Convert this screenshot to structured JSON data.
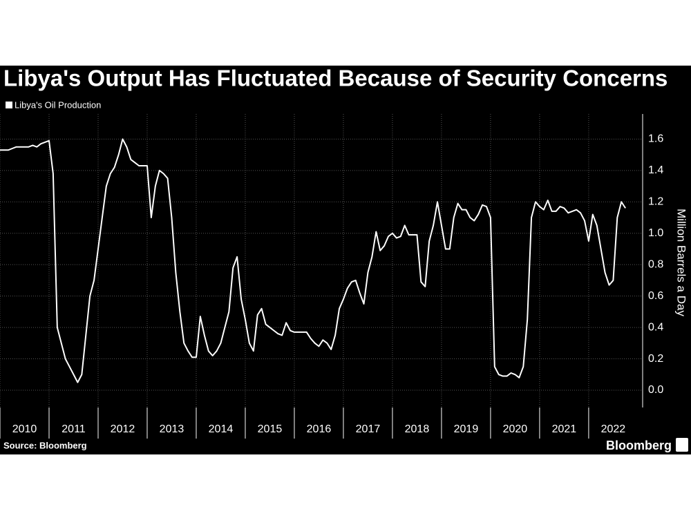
{
  "chart_data": {
    "type": "line",
    "title": "Libya's Output Has Fluctuated Because of Security Concerns",
    "y_axis_label": "Million Barrels a Day",
    "source": "Source: Bloomberg",
    "brand": "Bloomberg",
    "grid": true,
    "xlim": [
      2010,
      2023.1
    ],
    "xticks": [
      2010,
      2011,
      2012,
      2013,
      2014,
      2015,
      2016,
      2017,
      2018,
      2019,
      2020,
      2021,
      2022
    ],
    "ylim": [
      -0.11,
      1.76
    ],
    "yticks": [
      {
        "value": 0,
        "label": "0.0"
      },
      0.2,
      0.4,
      0.6,
      0.8,
      {
        "value": 1,
        "label": "1.0"
      },
      1.2,
      1.4,
      1.6
    ],
    "x": [
      2010.0,
      2010.083,
      2010.167,
      2010.25,
      2010.333,
      2010.417,
      2010.5,
      2010.583,
      2010.667,
      2010.75,
      2010.833,
      2010.917,
      2011.0,
      2011.083,
      2011.167,
      2011.25,
      2011.333,
      2011.417,
      2011.5,
      2011.583,
      2011.667,
      2011.75,
      2011.833,
      2011.917,
      2012.0,
      2012.083,
      2012.167,
      2012.25,
      2012.333,
      2012.417,
      2012.5,
      2012.583,
      2012.667,
      2012.75,
      2012.833,
      2012.917,
      2013.0,
      2013.083,
      2013.167,
      2013.25,
      2013.333,
      2013.417,
      2013.5,
      2013.583,
      2013.667,
      2013.75,
      2013.833,
      2013.917,
      2014.0,
      2014.083,
      2014.167,
      2014.25,
      2014.333,
      2014.417,
      2014.5,
      2014.583,
      2014.667,
      2014.75,
      2014.833,
      2014.917,
      2015.0,
      2015.083,
      2015.167,
      2015.25,
      2015.333,
      2015.417,
      2015.5,
      2015.583,
      2015.667,
      2015.75,
      2015.833,
      2015.917,
      2016.0,
      2016.083,
      2016.167,
      2016.25,
      2016.333,
      2016.417,
      2016.5,
      2016.583,
      2016.667,
      2016.75,
      2016.833,
      2016.917,
      2017.0,
      2017.083,
      2017.167,
      2017.25,
      2017.333,
      2017.417,
      2017.5,
      2017.583,
      2017.667,
      2017.75,
      2017.833,
      2017.917,
      2018.0,
      2018.083,
      2018.167,
      2018.25,
      2018.333,
      2018.417,
      2018.5,
      2018.583,
      2018.667,
      2018.75,
      2018.833,
      2018.917,
      2019.0,
      2019.083,
      2019.167,
      2019.25,
      2019.333,
      2019.417,
      2019.5,
      2019.583,
      2019.667,
      2019.75,
      2019.833,
      2019.917,
      2020.0,
      2020.083,
      2020.167,
      2020.25,
      2020.333,
      2020.417,
      2020.5,
      2020.583,
      2020.667,
      2020.75,
      2020.833,
      2020.917,
      2021.0,
      2021.083,
      2021.167,
      2021.25,
      2021.333,
      2021.417,
      2021.5,
      2021.583,
      2021.667,
      2021.75,
      2021.833,
      2021.917,
      2022.0,
      2022.083,
      2022.167,
      2022.25,
      2022.333,
      2022.417,
      2022.5,
      2022.583,
      2022.667,
      2022.75
    ],
    "series": [
      {
        "name": "Libya's Oil Production",
        "color": "#ffffff",
        "values": [
          1.53,
          1.53,
          1.53,
          1.54,
          1.55,
          1.55,
          1.55,
          1.55,
          1.56,
          1.55,
          1.57,
          1.58,
          1.59,
          1.38,
          0.4,
          0.3,
          0.2,
          0.15,
          0.1,
          0.05,
          0.1,
          0.35,
          0.6,
          0.7,
          0.9,
          1.1,
          1.3,
          1.38,
          1.42,
          1.5,
          1.6,
          1.55,
          1.47,
          1.45,
          1.43,
          1.43,
          1.43,
          1.1,
          1.3,
          1.4,
          1.38,
          1.35,
          1.1,
          0.75,
          0.5,
          0.3,
          0.25,
          0.21,
          0.21,
          0.47,
          0.35,
          0.25,
          0.22,
          0.25,
          0.3,
          0.4,
          0.5,
          0.78,
          0.85,
          0.58,
          0.45,
          0.3,
          0.25,
          0.48,
          0.52,
          0.42,
          0.4,
          0.38,
          0.36,
          0.35,
          0.43,
          0.38,
          0.37,
          0.37,
          0.37,
          0.37,
          0.33,
          0.3,
          0.28,
          0.32,
          0.3,
          0.26,
          0.35,
          0.52,
          0.58,
          0.65,
          0.69,
          0.7,
          0.62,
          0.55,
          0.75,
          0.85,
          1.01,
          0.89,
          0.92,
          0.98,
          1.0,
          0.97,
          0.98,
          1.05,
          0.99,
          0.99,
          0.99,
          0.69,
          0.66,
          0.95,
          1.05,
          1.2,
          1.05,
          0.9,
          0.9,
          1.1,
          1.19,
          1.15,
          1.15,
          1.1,
          1.08,
          1.12,
          1.18,
          1.17,
          1.1,
          0.15,
          0.1,
          0.09,
          0.09,
          0.11,
          0.1,
          0.08,
          0.15,
          0.45,
          1.1,
          1.2,
          1.17,
          1.15,
          1.21,
          1.14,
          1.14,
          1.17,
          1.16,
          1.13,
          1.14,
          1.15,
          1.13,
          1.08,
          0.95,
          1.12,
          1.05,
          0.9,
          0.75,
          0.67,
          0.7,
          1.1,
          1.2,
          1.16
        ]
      }
    ]
  }
}
